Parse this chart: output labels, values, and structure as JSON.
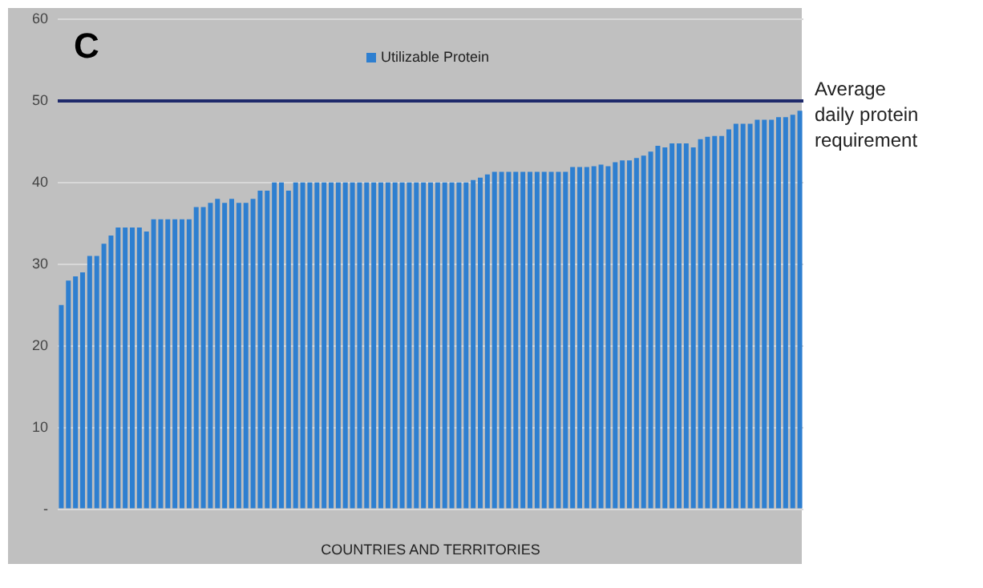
{
  "chart_data": {
    "type": "bar",
    "xlabel": "COUNTRIES AND TERRITORIES",
    "annotations": [
      "C"
    ],
    "categories": [
      null,
      null,
      null,
      null,
      null,
      null,
      null,
      null,
      null,
      null,
      null,
      null,
      null,
      null,
      null,
      null,
      null,
      null,
      null,
      null,
      null,
      null,
      null,
      null,
      null,
      null,
      null,
      null,
      null,
      null,
      null,
      null,
      null,
      null,
      null,
      null,
      null,
      null,
      null,
      null,
      null,
      null,
      null,
      null,
      null,
      null,
      null,
      null,
      null,
      null,
      null,
      null,
      null,
      null,
      null,
      null,
      null,
      null,
      null,
      null,
      null,
      null,
      null,
      null,
      null,
      null,
      null,
      null,
      null,
      null,
      null,
      null,
      null,
      null,
      null,
      null,
      null,
      null,
      null,
      null,
      null,
      null,
      null,
      null,
      null,
      null,
      null,
      null,
      null,
      null,
      null,
      null,
      null,
      null,
      null,
      null,
      null,
      null,
      null,
      null,
      null,
      null,
      null,
      null,
      null
    ],
    "series": [
      {
        "name": "Utilizable Protein",
        "color": "#2e7fd0",
        "values": [
          25,
          28,
          28.5,
          29,
          31,
          31,
          32.5,
          33.5,
          34.5,
          34.5,
          34.5,
          34.5,
          34,
          35.5,
          35.5,
          35.5,
          35.5,
          35.5,
          35.5,
          37,
          37,
          37.5,
          38,
          37.5,
          38,
          37.5,
          37.5,
          38,
          39,
          39,
          40,
          40,
          39,
          40,
          40,
          40,
          40,
          40,
          40,
          40,
          40,
          40,
          40,
          40,
          40,
          40,
          40,
          40,
          40,
          40,
          40,
          40,
          40,
          40,
          40,
          40,
          40,
          40,
          40.3,
          40.6,
          41,
          41.3,
          41.3,
          41.3,
          41.3,
          41.3,
          41.3,
          41.3,
          41.3,
          41.3,
          41.3,
          41.3,
          41.9,
          41.9,
          41.9,
          42,
          42.2,
          42,
          42.5,
          42.7,
          42.7,
          43,
          43.3,
          43.8,
          44.5,
          44.3,
          44.8,
          44.8,
          44.8,
          44.3,
          45.3,
          45.6,
          45.7,
          45.7,
          46.5,
          47.2,
          47.2,
          47.2,
          47.7,
          47.7,
          47.7,
          48,
          48,
          48.3,
          48.8
        ]
      }
    ],
    "ylim": [
      0,
      60
    ],
    "yticks": [
      {
        "value": 0,
        "label": "-"
      },
      10,
      20,
      30,
      40,
      50,
      60
    ],
    "grid": "y",
    "legend": "top",
    "ref_lines": [
      {
        "axis": "y",
        "value": 50,
        "label": "Average daily protein requirement",
        "color": "#1f2a6b"
      }
    ]
  }
}
